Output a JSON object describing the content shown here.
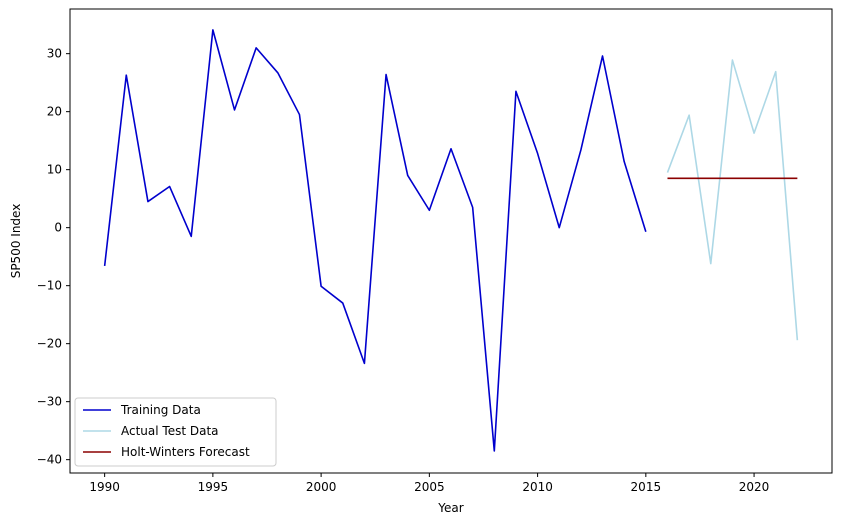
{
  "chart_data": {
    "type": "line",
    "title": "",
    "xlabel": "Year",
    "ylabel": "SP500 Index",
    "xlim": [
      1988.4,
      2023.6
    ],
    "ylim": [
      -42.3,
      37.7
    ],
    "xticks": [
      1990,
      1995,
      2000,
      2005,
      2010,
      2015,
      2020
    ],
    "yticks": [
      -40,
      -30,
      -20,
      -10,
      0,
      10,
      20,
      30
    ],
    "grid": false,
    "legend_position": "lower-left",
    "series": [
      {
        "name": "Training Data",
        "color": "#0000cd",
        "x": [
          1990,
          1991,
          1992,
          1993,
          1994,
          1995,
          1996,
          1997,
          1998,
          1999,
          2000,
          2001,
          2002,
          2003,
          2004,
          2005,
          2006,
          2007,
          2008,
          2009,
          2010,
          2011,
          2012,
          2013,
          2014,
          2015
        ],
        "y": [
          -6.6,
          26.3,
          4.5,
          7.1,
          -1.5,
          34.1,
          20.3,
          31.0,
          26.7,
          19.5,
          -10.1,
          -13.0,
          -23.4,
          26.4,
          9.0,
          3.0,
          13.6,
          3.5,
          -38.5,
          23.5,
          12.8,
          0.0,
          13.4,
          29.6,
          11.4,
          -0.7
        ]
      },
      {
        "name": "Actual Test Data",
        "color": "#add8e6",
        "x": [
          2016,
          2017,
          2018,
          2019,
          2020,
          2021,
          2022
        ],
        "y": [
          9.5,
          19.4,
          -6.2,
          28.9,
          16.3,
          26.9,
          -19.4
        ]
      },
      {
        "name": "Holt-Winters Forecast",
        "color": "#8b0000",
        "x": [
          2016,
          2017,
          2018,
          2019,
          2020,
          2021,
          2022
        ],
        "y": [
          8.5,
          8.5,
          8.5,
          8.5,
          8.5,
          8.5,
          8.5
        ]
      }
    ]
  }
}
